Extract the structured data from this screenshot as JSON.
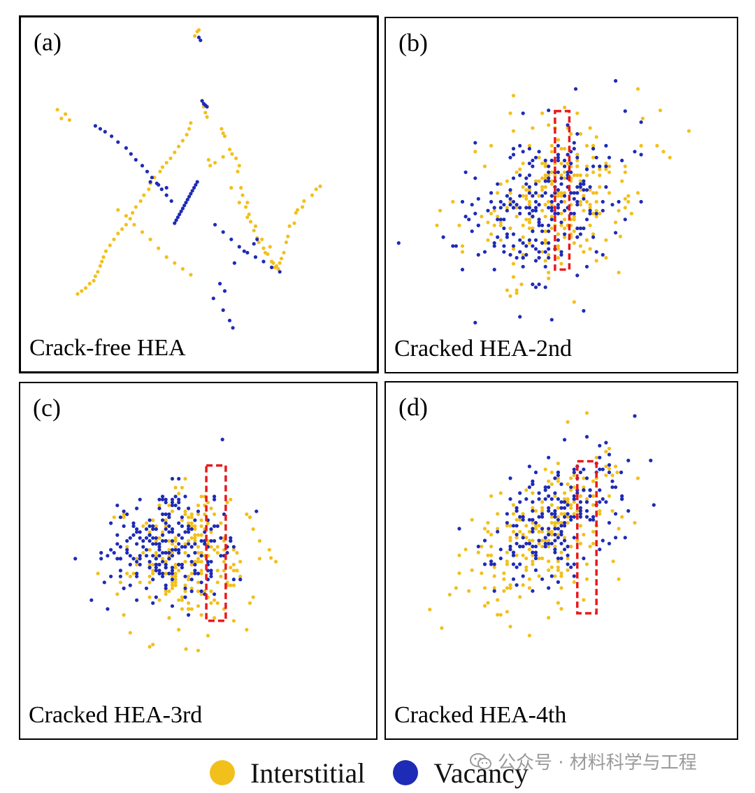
{
  "chart_data": [
    {
      "type": "scatter",
      "panel_label": "(a)",
      "caption": "Crack-free HEA",
      "series": [
        {
          "name": "Interstitial",
          "x": [
            12,
            14,
            28,
            30,
            32,
            38,
            41,
            46,
            48,
            50,
            52,
            54,
            58,
            60,
            62,
            64,
            68,
            70,
            72,
            74,
            78,
            80,
            82,
            85,
            88,
            90,
            92,
            94,
            96,
            98,
            100,
            102,
            105,
            108,
            110,
            112,
            118,
            120,
            122,
            128,
            130,
            140,
            145,
            150,
            -5,
            -2,
            0,
            4,
            6,
            8,
            10,
            -10,
            -12,
            -15,
            -20,
            -25,
            -30,
            -35,
            -40,
            -45,
            -48,
            -55,
            -60,
            -62,
            -68,
            -72,
            -78,
            -82,
            -85,
            -90,
            -95,
            -100,
            -105,
            -110,
            -115,
            -118,
            -120,
            -122,
            -125,
            -128,
            -130,
            -135,
            -140,
            -145,
            -150,
            -160,
            -165,
            -170,
            -175,
            -100,
            -90,
            -80,
            -70,
            -60,
            -50,
            -40,
            -30,
            -20,
            -10,
            20,
            30,
            40,
            50,
            60
          ],
          "y": [
            28,
            20,
            70,
            64,
            60,
            42,
            36,
            30,
            12,
            20,
            -10,
            -20,
            -36,
            -30,
            -46,
            -56,
            -68,
            -62,
            -78,
            -84,
            -80,
            -92,
            -98,
            -100,
            -90,
            -110,
            -112,
            -118,
            -116,
            -120,
            -112,
            -106,
            -98,
            -84,
            -76,
            -62,
            -58,
            -44,
            -40,
            -36,
            -28,
            -20,
            -12,
            -8,
            196,
            202,
            204,
            108,
            100,
            92,
            86,
            78,
            70,
            62,
            54,
            46,
            38,
            30,
            24,
            18,
            12,
            4,
            -4,
            -12,
            -20,
            -28,
            -36,
            -44,
            -52,
            -60,
            -66,
            -72,
            -80,
            -88,
            -96,
            -104,
            -110,
            -116,
            -124,
            -130,
            -136,
            -140,
            -146,
            -150,
            -154,
            82,
            90,
            84,
            96,
            -40,
            -48,
            -60,
            -70,
            -80,
            -92,
            -104,
            -112,
            -120,
            -128,
            24,
            32,
            -10,
            -30,
            -50
          ]
        },
        {
          "name": "Vacancy",
          "x": [
            0,
            2,
            4,
            6,
            8,
            10,
            -2,
            -4,
            -6,
            -8,
            -10,
            -12,
            -14,
            -16,
            -18,
            -20,
            -22,
            -24,
            -26,
            -28,
            -30,
            -34,
            -40,
            -46,
            -52,
            -58,
            -64,
            -70,
            -78,
            -84,
            -90,
            -100,
            -108,
            -116,
            -122,
            -128,
            20,
            30,
            40,
            50,
            60,
            70,
            80,
            90,
            100,
            26,
            18,
            32,
            44,
            56,
            68,
            72,
            -40,
            -50,
            -60,
            30,
            38,
            42
          ],
          "y": [
            194,
            190,
            108,
            104,
            102,
            100,
            -2,
            -6,
            -10,
            -14,
            -18,
            -22,
            -26,
            -30,
            -34,
            -38,
            -42,
            -46,
            -50,
            -54,
            -58,
            -28,
            -20,
            -12,
            -4,
            4,
            12,
            20,
            28,
            36,
            44,
            52,
            60,
            66,
            70,
            74,
            -60,
            -70,
            -80,
            -90,
            -98,
            -104,
            -110,
            -118,
            -124,
            -140,
            -160,
            -150,
            -112,
            -96,
            -86,
            -80,
            -10,
            -6,
            -2,
            -176,
            -190,
            -200
          ]
        }
      ],
      "xlim": [
        -220,
        220
      ],
      "ylim": [
        -240,
        240
      ]
    },
    {
      "type": "scatter",
      "panel_label": "(b)",
      "caption": "Cracked HEA-2nd",
      "series": [
        {
          "name": "Interstitial",
          "generator": "cluster",
          "center": [
            0,
            -20
          ],
          "spread": [
            95,
            110
          ],
          "tilt": 0.45,
          "count": 260,
          "extra_x": [
            20,
            96,
            102,
            74,
            -60,
            -50
          ],
          "extra_y": [
            250,
            125,
            85,
            -75,
            -130,
            -140
          ]
        },
        {
          "name": "Vacancy",
          "generator": "cluster",
          "center": [
            -20,
            -30
          ],
          "spread": [
            90,
            105
          ],
          "tilt": 0.45,
          "count": 240,
          "extra_x": [
            18,
            100,
            68,
            80
          ],
          "extra_y": [
            125,
            80,
            -70,
            95
          ]
        }
      ],
      "xlim": [
        -220,
        220
      ],
      "ylim": [
        -240,
        240
      ]
    },
    {
      "type": "scatter",
      "panel_label": "(c)",
      "caption": "Cracked HEA-3rd",
      "series": [
        {
          "name": "Interstitial",
          "generator": "cluster",
          "center": [
            -10,
            -20
          ],
          "spread": [
            80,
            85
          ],
          "tilt": 0.0,
          "count": 240,
          "extra_x": [
            90,
            -60,
            -15
          ],
          "extra_y": [
            -15,
            -135,
            -138
          ]
        },
        {
          "name": "Vacancy",
          "generator": "cluster",
          "center": [
            -40,
            0
          ],
          "spread": [
            80,
            75
          ],
          "tilt": 0.0,
          "count": 230,
          "extra_x": [
            30
          ],
          "extra_y": [
            145
          ]
        }
      ],
      "xlim": [
        -220,
        220
      ],
      "ylim": [
        -240,
        240
      ]
    },
    {
      "type": "scatter",
      "panel_label": "(d)",
      "caption": "Cracked HEA-4th",
      "series": [
        {
          "name": "Interstitial",
          "generator": "cluster",
          "center": [
            -20,
            20
          ],
          "spread": [
            80,
            100
          ],
          "tilt": 0.85,
          "count": 230,
          "extra_x": [
            -165,
            -150,
            -140,
            60,
            70,
            65
          ],
          "extra_y": [
            -85,
            -110,
            -65,
            105,
            100,
            -20
          ]
        },
        {
          "name": "Vacancy",
          "generator": "cluster",
          "center": [
            -10,
            40
          ],
          "spread": [
            75,
            95
          ],
          "tilt": 0.85,
          "count": 210,
          "extra_x": [
            60,
            75
          ],
          "extra_y": [
            110,
            100
          ]
        }
      ],
      "xlim": [
        -220,
        220
      ],
      "ylim": [
        -240,
        240
      ]
    }
  ],
  "highlights": [
    null,
    {
      "x": [
        -8,
        10
      ],
      "y": [
        -120,
        95
      ]
    },
    {
      "x": [
        10,
        34
      ],
      "y": [
        -100,
        110
      ]
    },
    {
      "x": [
        20,
        44
      ],
      "y": [
        -90,
        115
      ]
    }
  ],
  "legend": [
    {
      "label": "Interstitial",
      "color": "#f2c01b"
    },
    {
      "label": "Vacancy",
      "color": "#1e2bb6"
    }
  ],
  "colors": {
    "interstitial": "#f2c01b",
    "vacancy": "#1e2bb6",
    "highlight": "#e8191a"
  },
  "watermark": "公众号 · 材料科学与工程"
}
